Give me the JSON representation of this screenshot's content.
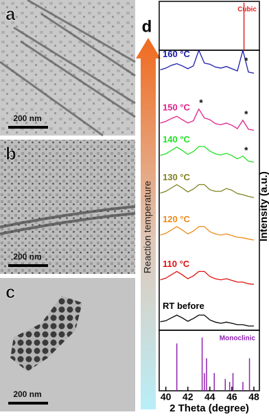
{
  "panels": [
    {
      "label": "a",
      "scale_bar": "200 nm"
    },
    {
      "label": "b",
      "scale_bar": "200 nm"
    },
    {
      "label": "c",
      "scale_bar": "200 nm"
    }
  ],
  "arrow_label": "Reaction temperature",
  "chart_data": {
    "type": "line",
    "panel_label": "d",
    "xlabel": "2 Theta (degree)",
    "ylabel": "Intensity (a.u.)",
    "xlim": [
      39.4,
      48.5
    ],
    "xticks": [
      40,
      42,
      44,
      46,
      48
    ],
    "ylim": [
      0,
      100
    ],
    "x": [
      39.5,
      40,
      40.5,
      41,
      41.5,
      42,
      42.5,
      43,
      43.5,
      44,
      44.5,
      45,
      45.5,
      46,
      46.5,
      47,
      47.5,
      48
    ],
    "series": [
      {
        "name": "160 °C",
        "color": "#1a1aa8",
        "values": [
          93,
          93.6,
          94.6,
          95.2,
          94.4,
          93.4,
          94.4,
          100,
          95.4,
          95,
          94,
          93.6,
          94.2,
          93.4,
          92.6,
          100,
          92.2,
          91.8
        ]
      },
      {
        "name": "150 °C",
        "color": "#e0208a",
        "values": [
          74,
          74.6,
          75.6,
          76.4,
          75.2,
          74,
          74.8,
          79,
          75.8,
          75.2,
          73.8,
          73.4,
          74,
          73.2,
          72,
          75,
          71.8,
          71.4
        ]
      },
      {
        "name": "140 °C",
        "color": "#22e022",
        "values": [
          62.5,
          63,
          64.2,
          65.4,
          64.2,
          62.8,
          63.8,
          65.6,
          65.6,
          64,
          63,
          62.6,
          63.2,
          62.4,
          61.2,
          62.2,
          60.4,
          60
        ]
      },
      {
        "name": "130 °C",
        "color": "#808020",
        "values": [
          49,
          49.6,
          50.8,
          52,
          50.8,
          49.4,
          50.4,
          52,
          52,
          50.2,
          49.6,
          49.6,
          50.6,
          50,
          48.8,
          48.4,
          47.8,
          47.4
        ]
      },
      {
        "name": "120 °C",
        "color": "#f08a1a",
        "values": [
          34,
          34.6,
          35.8,
          37,
          35.8,
          34.4,
          35.4,
          37,
          37,
          35.2,
          34.4,
          34,
          34.4,
          33.8,
          33.2,
          33,
          32.6,
          32.2
        ]
      },
      {
        "name": "110 °C",
        "color": "#e01010",
        "values": [
          18,
          18.6,
          19.8,
          21,
          19.8,
          18.4,
          19.4,
          21,
          21,
          19.2,
          18.4,
          18,
          18.4,
          17.8,
          17.2,
          17.2,
          16.6,
          16.4
        ]
      },
      {
        "name": "RT before",
        "color": "#000000",
        "values": [
          3,
          3.4,
          4.4,
          5.4,
          4.4,
          3.2,
          4.2,
          5.4,
          5.4,
          3.7,
          2.9,
          2.5,
          2.9,
          2.5,
          2,
          2,
          1.5,
          1.5
        ]
      }
    ],
    "annotations": [
      {
        "text": "*",
        "x": 47.3,
        "y": 96
      },
      {
        "text": "*",
        "x": 43.2,
        "y": 81
      },
      {
        "text": "*",
        "x": 47.3,
        "y": 77
      },
      {
        "text": "*",
        "x": 47.3,
        "y": 64
      }
    ],
    "references": [
      {
        "name": "Cubic",
        "color": "#e02020",
        "position": "top",
        "peaks": [
          {
            "x": 47.1,
            "height": 100
          }
        ]
      },
      {
        "name": "Monoclinic",
        "color": "#9020b0",
        "position": "bottom",
        "peaks": [
          {
            "x": 41.0,
            "height": 80
          },
          {
            "x": 43.3,
            "height": 90
          },
          {
            "x": 43.5,
            "height": 30
          },
          {
            "x": 43.7,
            "height": 55
          },
          {
            "x": 44.4,
            "height": 30
          },
          {
            "x": 45.4,
            "height": 20
          },
          {
            "x": 45.8,
            "height": 15
          },
          {
            "x": 46.1,
            "height": 30
          },
          {
            "x": 47.0,
            "height": 15
          },
          {
            "x": 47.6,
            "height": 55
          }
        ]
      }
    ]
  }
}
